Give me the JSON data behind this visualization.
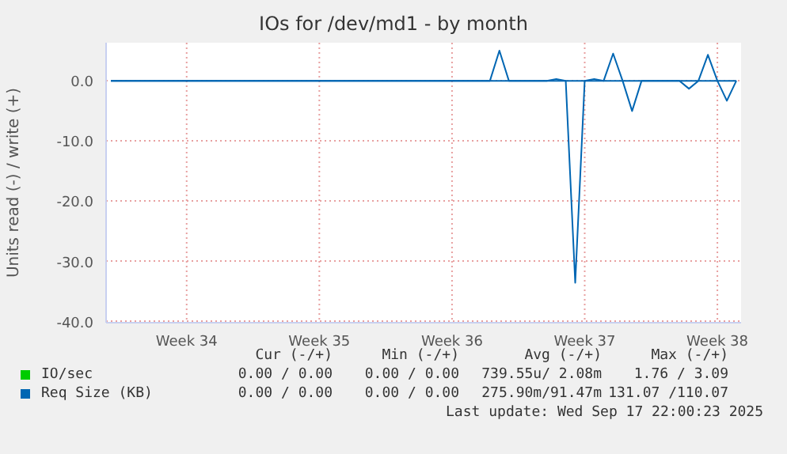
{
  "chart_data": {
    "type": "line",
    "title": "IOs for /dev/md1 - by month",
    "ylabel": "Units read (-) / write (+)",
    "categories": [
      null,
      null,
      null,
      null,
      null,
      null,
      null,
      null,
      "Week 34",
      null,
      null,
      null,
      null,
      null,
      null,
      null,
      null,
      null,
      null,
      null,
      null,
      null,
      "Week 35",
      null,
      null,
      null,
      null,
      null,
      null,
      null,
      null,
      null,
      null,
      null,
      null,
      null,
      "Week 36",
      null,
      null,
      null,
      null,
      null,
      null,
      null,
      null,
      null,
      null,
      null,
      null,
      null,
      "Week 37",
      null,
      null,
      null,
      null,
      null,
      null,
      null,
      null,
      null,
      null,
      null,
      null,
      null,
      "Week 38",
      null,
      null
    ],
    "ylim": [
      -40,
      6.3
    ],
    "yticks": [
      {
        "value": -40,
        "label": "-40.0"
      },
      {
        "value": -30,
        "label": "-30.0"
      },
      {
        "value": -20,
        "label": "-20.0"
      },
      {
        "value": -10,
        "label": "-10.0"
      },
      {
        "value": 0,
        "label": "0.0"
      }
    ],
    "grid": true,
    "legend": "bottom",
    "marker": "none",
    "line_style": "solid",
    "series": [
      {
        "name": "IO/sec",
        "color": "#00cc00",
        "values": [
          null,
          null,
          null,
          null,
          null,
          null,
          null,
          null,
          null,
          null,
          null,
          null,
          null,
          null,
          null,
          null,
          null,
          null,
          null,
          null,
          null,
          null,
          null,
          null,
          null,
          null,
          null,
          null,
          null,
          null,
          null,
          null,
          null,
          null,
          null,
          null,
          null,
          null,
          null,
          null,
          null,
          null,
          null,
          null,
          null,
          null,
          null,
          null,
          null,
          null,
          null,
          null,
          null,
          null,
          null,
          null,
          null,
          null,
          null,
          null,
          null,
          null,
          null,
          null,
          null,
          null,
          null
        ]
      },
      {
        "name": "Req Size (KB)",
        "color": "#0066b3",
        "values": [
          0,
          0,
          0,
          0,
          0,
          0,
          0,
          0,
          0,
          0,
          0,
          0,
          0,
          0,
          0,
          0,
          0,
          0,
          0,
          0,
          0,
          0,
          0,
          0,
          0,
          0,
          0,
          0,
          0,
          0,
          0,
          0,
          0,
          0,
          0,
          0,
          0,
          0,
          0,
          0,
          0,
          5,
          0,
          0,
          0,
          0,
          0,
          0.3,
          0,
          0,
          0,
          0.3,
          0,
          4.5,
          0,
          0,
          0,
          0,
          0,
          0,
          0,
          0,
          0,
          4.3,
          0,
          0,
          0
        ]
      },
      {
        "color": "#0066b3",
        "values": [
          0,
          0,
          0,
          0,
          0,
          0,
          0,
          0,
          0,
          0,
          0,
          0,
          0,
          0,
          0,
          0,
          0,
          0,
          0,
          0,
          0,
          0,
          0,
          0,
          0,
          0,
          0,
          0,
          0,
          0,
          0,
          0,
          0,
          0,
          0,
          0,
          0,
          0,
          0,
          0,
          0,
          0,
          0,
          0,
          0,
          0,
          0,
          0,
          0,
          -33.4,
          0,
          0,
          0,
          0,
          0,
          -5,
          0,
          0,
          0,
          0,
          0,
          -1.3,
          0,
          0,
          0,
          -3.3,
          0
        ]
      }
    ],
    "annotations": [
      "Cur (-/+)",
      "Min (-/+)",
      "Avg (-/+)",
      "Max (-/+)",
      "0.00 / 0.00",
      "0.00 / 0.00",
      "739.55u/ 2.08m",
      "1.76 / 3.09",
      "0.00 / 0.00",
      "0.00 / 0.00",
      "275.90m/91.47m",
      "131.07 /110.07",
      "Last update: Wed Sep 17 22:00:23 2025"
    ]
  }
}
